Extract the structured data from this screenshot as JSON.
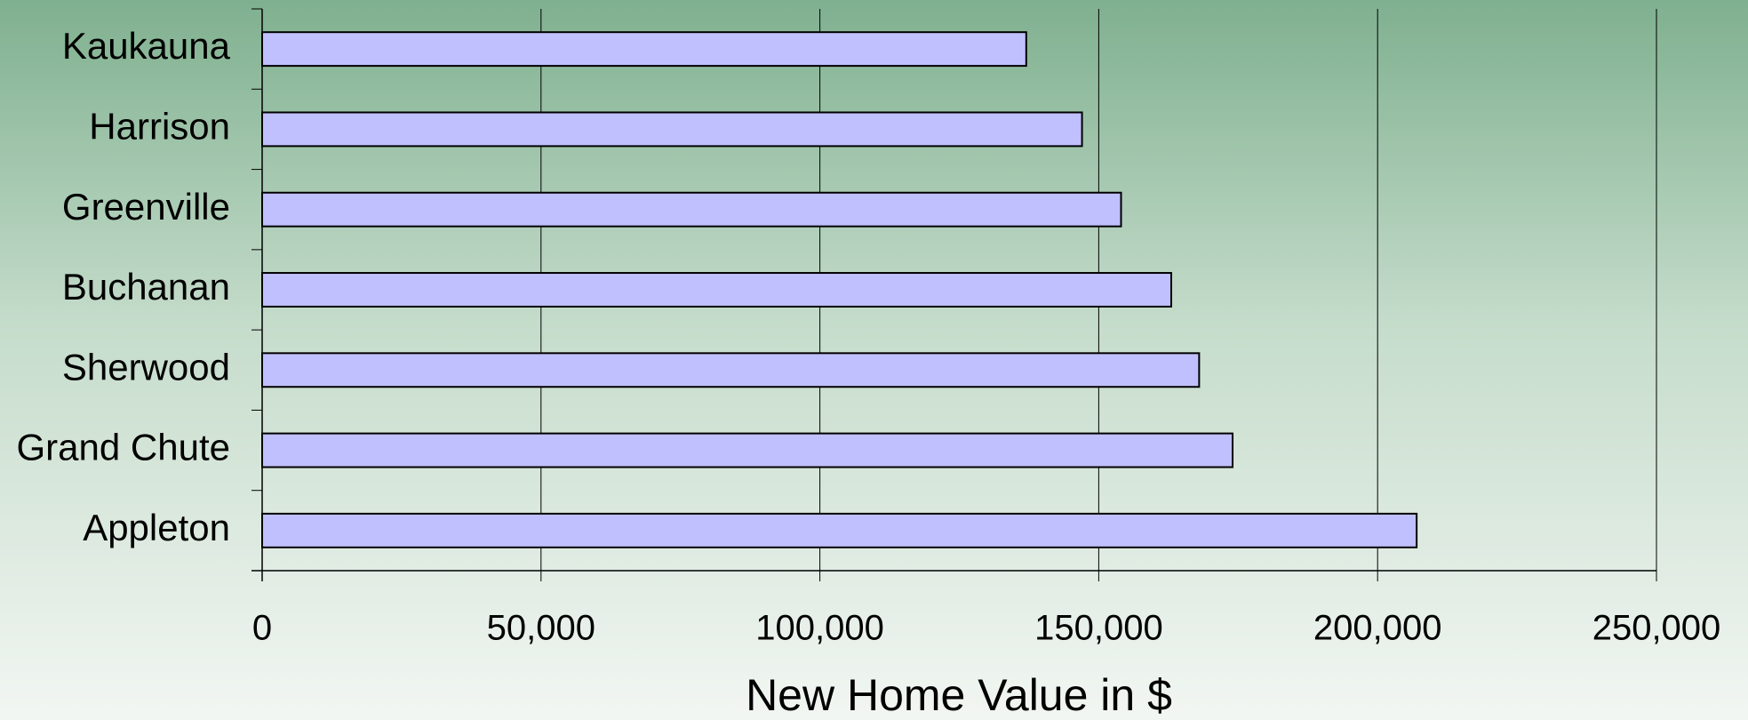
{
  "chart_data": {
    "type": "hbar",
    "x_label": "New Home Value in $",
    "categories": [
      "Appleton",
      "Grand Chute",
      "Sherwood",
      "Buchanan",
      "Greenville",
      "Harrison",
      "Kaukauna"
    ],
    "values": [
      207000,
      174000,
      168000,
      163000,
      154000,
      147000,
      137000
    ],
    "color": "#c0c0ff",
    "xlim": [
      0,
      250000
    ],
    "xticks": [
      0,
      {
        "value": 50000,
        "label": "50,000"
      },
      {
        "value": 100000,
        "label": "100,000"
      },
      {
        "value": 150000,
        "label": "150,000"
      },
      {
        "value": 200000,
        "label": "200,000"
      },
      {
        "value": 250000,
        "label": "250,000"
      }
    ],
    "grid": true
  }
}
